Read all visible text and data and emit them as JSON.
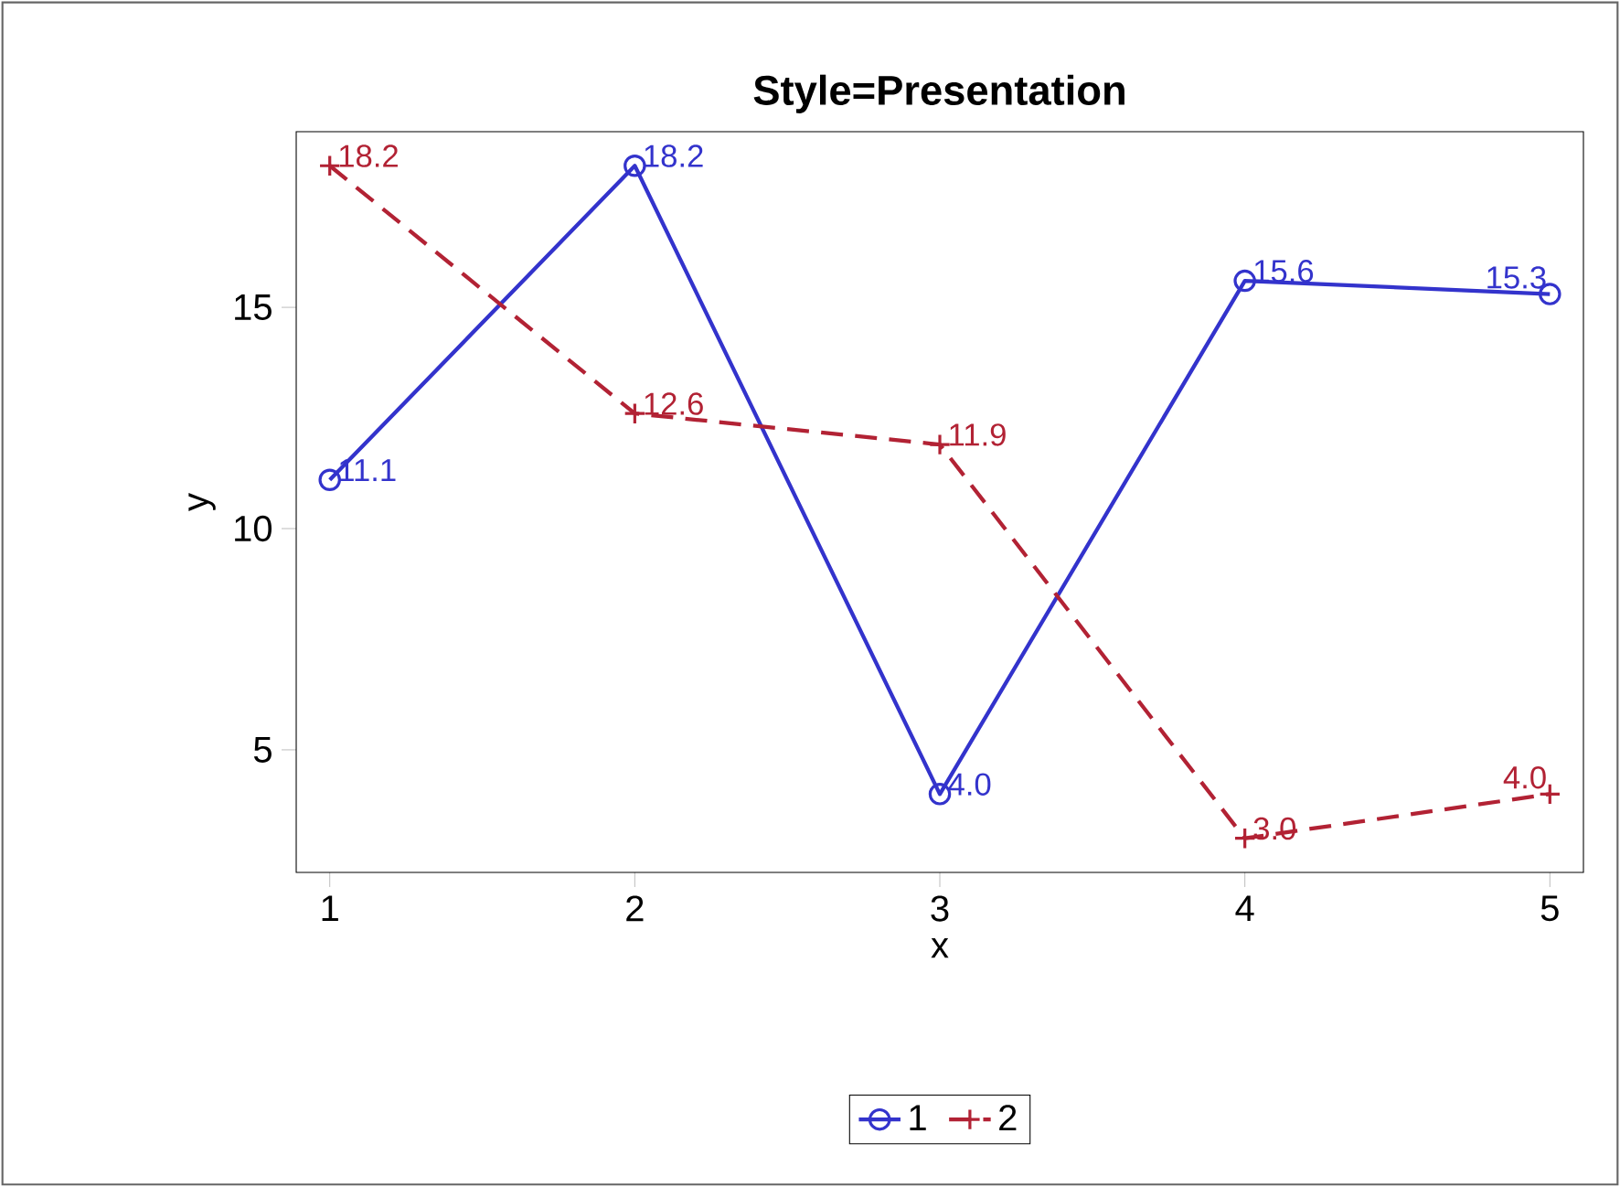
{
  "chart_data": {
    "type": "line",
    "title": "Style=Presentation",
    "xlabel": "x",
    "ylabel": "y",
    "x": [
      1,
      2,
      3,
      4,
      5
    ],
    "series": [
      {
        "name": "1",
        "color": "#3333cc",
        "values": [
          11.1,
          18.2,
          4.0,
          15.6,
          15.3
        ],
        "value_labels": [
          "11.1",
          "18.2",
          "4.0",
          "15.6",
          "15.3"
        ],
        "marker": "circle",
        "line_style": "solid"
      },
      {
        "name": "2",
        "color": "#b22234",
        "values": [
          18.2,
          12.6,
          11.9,
          3.0,
          4.0
        ],
        "value_labels": [
          "18.2",
          "12.6",
          "11.9",
          "3.0",
          "4.0"
        ],
        "marker": "cross",
        "line_style": "dashed"
      }
    ],
    "xlim": [
      0.89,
      5.11
    ],
    "ylim": [
      2.23,
      18.97
    ],
    "xticks": [
      1,
      2,
      3,
      4,
      5
    ],
    "yticks": [
      5,
      10,
      15
    ],
    "legend": "bottom",
    "grid": false
  }
}
